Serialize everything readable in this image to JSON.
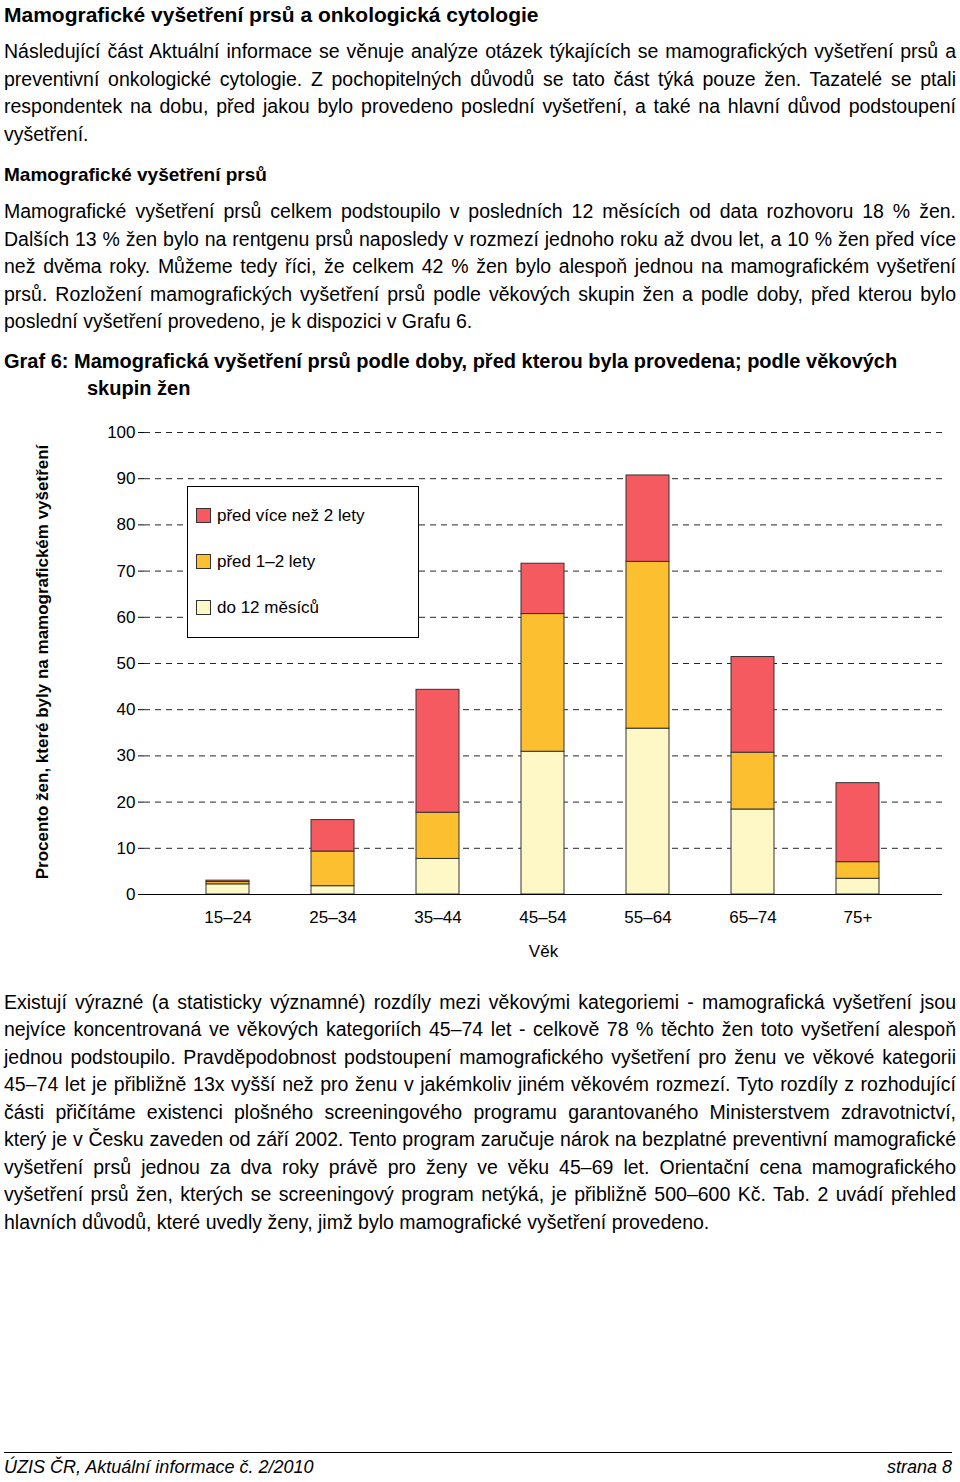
{
  "document": {
    "heading": "Mamografické vyšetření prsů a onkologická cytologie",
    "intro": "Následující část Aktuální informace se věnuje analýze otázek týkajících se mamografických vyšetření prsů a preventivní onkologické cytologie. Z pochopitelných důvodů se tato část týká pouze žen. Tazatelé se ptali respondentek na dobu, před jakou bylo provedeno poslední vyšetření, a také na hlavní důvod podstoupení vyšetření.",
    "subheading": "Mamografické vyšetření prsů",
    "paragraph_1": "Mamografické vyšetření prsů celkem podstoupilo v posledních 12 měsících od data rozhovoru 18 % žen. Dalších 13 % žen bylo na rentgenu prsů naposledy v rozmezí jednoho roku až dvou let, a 10 % žen před více než dvěma roky. Můžeme tedy říci, že celkem 42 % žen bylo alespoň jednou na mamografickém vyšetření prsů. Rozložení mamografických vyšetření prsů podle věkových skupin žen a podle doby, před kterou bylo poslední vyšetření provedeno, je k dispozici v Grafu 6.",
    "paragraph_2": "Existují výrazné (a statisticky významné) rozdíly mezi věkovými kategoriemi - mamografická vyšetření jsou nejvíce koncentrovaná ve věkových kategoriích 45–74 let - celkově 78 % těchto žen toto vyšetření alespoň jednou podstoupilo. Pravděpodobnost podstoupení mamografického vyšetření pro ženu ve věkové kategorii 45–74 let je přibližně 13x vyšší než pro ženu v jakémkoliv jiném věkovém rozmezí. Tyto rozdíly z rozhodující části přičítáme existenci plošného screeningového programu garantovaného Ministerstvem zdravotnictví, který je v Česku zaveden od září 2002. Tento program zaručuje nárok na bezplatné preventivní mamografické vyšetření prsů jednou za dva roky právě pro ženy ve věku 45–69 let. Orientační cena mamografického vyšetření prsů žen, kterých se screeningový program netýká, je přibližně 500–600 Kč. Tab. 2 uvádí přehled hlavních důvodů, které uvedly ženy, jimž bylo mamografické vyšetření provedeno.",
    "footer_left": "ÚZIS ČR, Aktuální informace č. 2/2010",
    "footer_right": "strana 8"
  },
  "chart_data": {
    "type": "bar",
    "stacked": true,
    "title": "Graf 6: Mamografická vyšetření prsů podle doby, před kterou byla provedena; podle věkových skupin žen",
    "x_label": "Věk",
    "y_label": "Procento žen, které byly na mamografickém vyšetření",
    "categories": [
      "15–24",
      "25–34",
      "35–44",
      "45–54",
      "55–64",
      "65–74",
      "75+"
    ],
    "series": [
      {
        "name": "do 12 měsíců",
        "color": "#fdf8c6",
        "values": [
          2.2,
          1.8,
          7.7,
          30.9,
          35.9,
          18.4,
          3.4
        ]
      },
      {
        "name": "před 1–2 lety",
        "color": "#fbbf30",
        "values": [
          0.5,
          7.5,
          10.0,
          29.8,
          36.1,
          12.3,
          3.6
        ]
      },
      {
        "name": "před více než 2 lety",
        "color": "#f45a60",
        "values": [
          0.3,
          6.8,
          26.6,
          10.9,
          18.7,
          20.7,
          17.1
        ]
      }
    ],
    "ylim": [
      0,
      100
    ],
    "yticks": [
      0,
      10,
      20,
      30,
      40,
      50,
      60,
      70,
      80,
      90,
      100
    ],
    "grid": true,
    "legend": "top-left"
  }
}
